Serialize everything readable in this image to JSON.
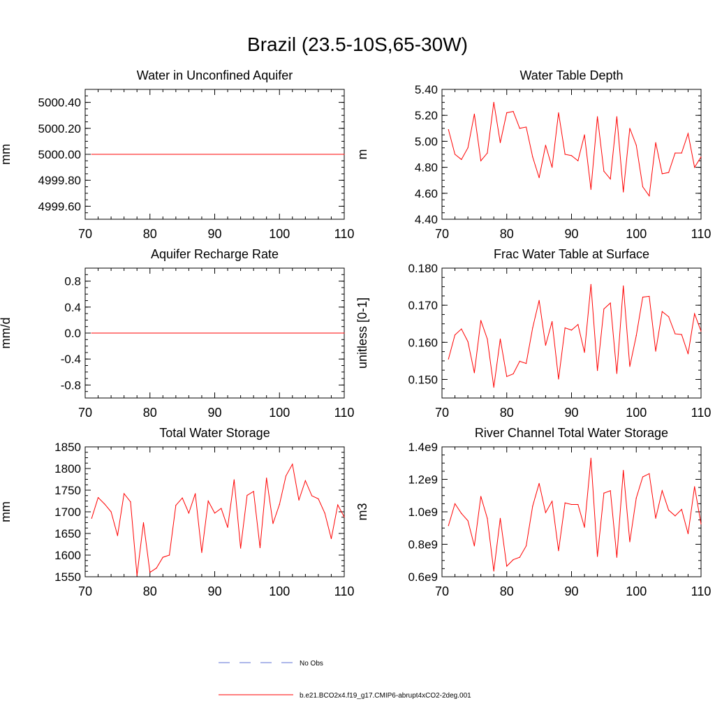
{
  "figure_title": "Brazil (23.5-10S,65-30W)",
  "colors": {
    "model_line": "#ff0000",
    "obs_line": "#5b6fd6",
    "axis": "#000000"
  },
  "legend": {
    "obs_label": "No Obs",
    "model_label": "b.e21.BCO2x4.f19_g17.CMIP6-abrupt4xCO2-2deg.001"
  },
  "chart_data": [
    {
      "type": "line",
      "title": "Water in Unconfined Aquifer",
      "ylabel": "mm",
      "xlim": [
        70,
        110
      ],
      "ylim": [
        4999.5,
        5000.5
      ],
      "xticks": [
        70,
        80,
        90,
        100,
        110
      ],
      "yticks": [
        4999.6,
        4999.8,
        5000.0,
        5000.2,
        5000.4
      ],
      "ytick_labels": [
        "4999.60",
        "4999.80",
        "5000.00",
        "5000.20",
        "5000.40"
      ],
      "yminor": 0.05,
      "x": [
        71,
        110
      ],
      "values": [
        5000.0,
        5000.0
      ]
    },
    {
      "type": "line",
      "title": "Water Table Depth",
      "ylabel": "m",
      "xlim": [
        70,
        110
      ],
      "ylim": [
        4.4,
        5.4
      ],
      "xticks": [
        70,
        80,
        90,
        100,
        110
      ],
      "yticks": [
        4.4,
        4.6,
        4.8,
        5.0,
        5.2,
        5.4
      ],
      "ytick_labels": [
        "4.40",
        "4.60",
        "4.80",
        "5.00",
        "5.20",
        "5.40"
      ],
      "yminor": 0.05,
      "x": [
        71,
        72,
        73,
        74,
        75,
        76,
        77,
        78,
        79,
        80,
        81,
        82,
        83,
        84,
        85,
        86,
        87,
        88,
        89,
        90,
        91,
        92,
        93,
        94,
        95,
        96,
        97,
        98,
        99,
        100,
        101,
        102,
        103,
        104,
        105,
        106,
        107,
        108,
        109,
        110
      ],
      "values": [
        5.09,
        4.9,
        4.86,
        4.95,
        5.21,
        4.85,
        4.91,
        5.3,
        4.99,
        5.22,
        5.23,
        5.1,
        5.11,
        4.88,
        4.72,
        4.97,
        4.8,
        5.22,
        4.9,
        4.89,
        4.85,
        5.05,
        4.63,
        5.19,
        4.77,
        4.71,
        5.19,
        4.61,
        5.1,
        4.97,
        4.65,
        4.58,
        4.99,
        4.75,
        4.76,
        4.91,
        4.91,
        5.06,
        4.8,
        4.88
      ]
    },
    {
      "type": "line",
      "title": "Aquifer Recharge Rate",
      "ylabel": "mm/d",
      "xlim": [
        70,
        110
      ],
      "ylim": [
        -1.0,
        1.0
      ],
      "xticks": [
        70,
        80,
        90,
        100,
        110
      ],
      "yticks": [
        -0.8,
        -0.4,
        0.0,
        0.4,
        0.8
      ],
      "ytick_labels": [
        "-0.8",
        "-0.4",
        "0.0",
        "0.4",
        "0.8"
      ],
      "yminor": 0.1,
      "x": [
        71,
        110
      ],
      "values": [
        0.0,
        0.0
      ]
    },
    {
      "type": "line",
      "title": "Frac Water Table at Surface",
      "ylabel": "unitless [0-1]",
      "xlim": [
        70,
        110
      ],
      "ylim": [
        0.145,
        0.18
      ],
      "xticks": [
        70,
        80,
        90,
        100,
        110
      ],
      "yticks": [
        0.15,
        0.16,
        0.17,
        0.18
      ],
      "ytick_labels": [
        "0.150",
        "0.160",
        "0.170",
        "0.180"
      ],
      "yminor": 0.0025,
      "x": [
        71,
        72,
        73,
        74,
        75,
        76,
        77,
        78,
        79,
        80,
        81,
        82,
        83,
        84,
        85,
        86,
        87,
        88,
        89,
        90,
        91,
        92,
        93,
        94,
        95,
        96,
        97,
        98,
        99,
        100,
        101,
        102,
        103,
        104,
        105,
        106,
        107,
        108,
        109,
        110
      ],
      "values": [
        0.1555,
        0.162,
        0.1636,
        0.1602,
        0.1518,
        0.1659,
        0.1609,
        0.1479,
        0.1609,
        0.1508,
        0.1515,
        0.1549,
        0.1543,
        0.1639,
        0.1713,
        0.1592,
        0.1656,
        0.1501,
        0.1639,
        0.1633,
        0.1648,
        0.1573,
        0.1756,
        0.1524,
        0.169,
        0.1706,
        0.1516,
        0.1752,
        0.1535,
        0.1618,
        0.1722,
        0.1724,
        0.1576,
        0.1683,
        0.1669,
        0.1623,
        0.1621,
        0.1569,
        0.1677,
        0.163
      ]
    },
    {
      "type": "line",
      "title": "Total Water Storage",
      "ylabel": "mm",
      "xlim": [
        70,
        110
      ],
      "ylim": [
        1550,
        1850
      ],
      "xticks": [
        70,
        80,
        90,
        100,
        110
      ],
      "yticks": [
        1550,
        1600,
        1650,
        1700,
        1750,
        1800,
        1850
      ],
      "ytick_labels": [
        "1550",
        "1600",
        "1650",
        "1700",
        "1750",
        "1800",
        "1850"
      ],
      "yminor": 12.5,
      "x": [
        71,
        72,
        73,
        74,
        75,
        76,
        77,
        78,
        79,
        80,
        81,
        82,
        83,
        84,
        85,
        86,
        87,
        88,
        89,
        90,
        91,
        92,
        93,
        94,
        95,
        96,
        97,
        98,
        99,
        100,
        101,
        102,
        103,
        104,
        105,
        106,
        107,
        108,
        109,
        110
      ],
      "values": [
        1685,
        1733,
        1718,
        1700,
        1645,
        1742,
        1723,
        1553,
        1675,
        1560,
        1570,
        1595,
        1600,
        1715,
        1732,
        1697,
        1742,
        1606,
        1725,
        1697,
        1708,
        1664,
        1774,
        1616,
        1738,
        1747,
        1617,
        1778,
        1673,
        1717,
        1783,
        1810,
        1727,
        1772,
        1737,
        1730,
        1697,
        1638,
        1716,
        1688
      ]
    },
    {
      "type": "line",
      "title": "River Channel Total Water Storage",
      "ylabel": "m3",
      "xlim": [
        70,
        110
      ],
      "ylim": [
        600000000.0,
        1400000000.0
      ],
      "xticks": [
        70,
        80,
        90,
        100,
        110
      ],
      "yticks": [
        600000000.0,
        800000000.0,
        1000000000.0,
        1200000000.0,
        1400000000.0
      ],
      "ytick_labels": [
        "0.6e9",
        "0.8e9",
        "1.0e9",
        "1.2e9",
        "1.4e9"
      ],
      "yminor": 50000000.0,
      "x": [
        71,
        72,
        73,
        74,
        75,
        76,
        77,
        78,
        79,
        80,
        81,
        82,
        83,
        84,
        85,
        86,
        87,
        88,
        89,
        90,
        91,
        92,
        93,
        94,
        95,
        96,
        97,
        98,
        99,
        100,
        101,
        102,
        103,
        104,
        105,
        106,
        107,
        108,
        109,
        110
      ],
      "values": [
        915000000.0,
        1050000000.0,
        990000000.0,
        945000000.0,
        790000000.0,
        1095000000.0,
        960000000.0,
        635000000.0,
        960000000.0,
        665000000.0,
        705000000.0,
        720000000.0,
        790000000.0,
        1035000000.0,
        1175000000.0,
        995000000.0,
        1065000000.0,
        760000000.0,
        1055000000.0,
        1045000000.0,
        1045000000.0,
        905000000.0,
        1330000000.0,
        725000000.0,
        1115000000.0,
        1130000000.0,
        720000000.0,
        1255000000.0,
        815000000.0,
        1085000000.0,
        1215000000.0,
        1235000000.0,
        960000000.0,
        1130000000.0,
        1010000000.0,
        975000000.0,
        1015000000.0,
        865000000.0,
        1155000000.0,
        925000000.0
      ]
    }
  ]
}
